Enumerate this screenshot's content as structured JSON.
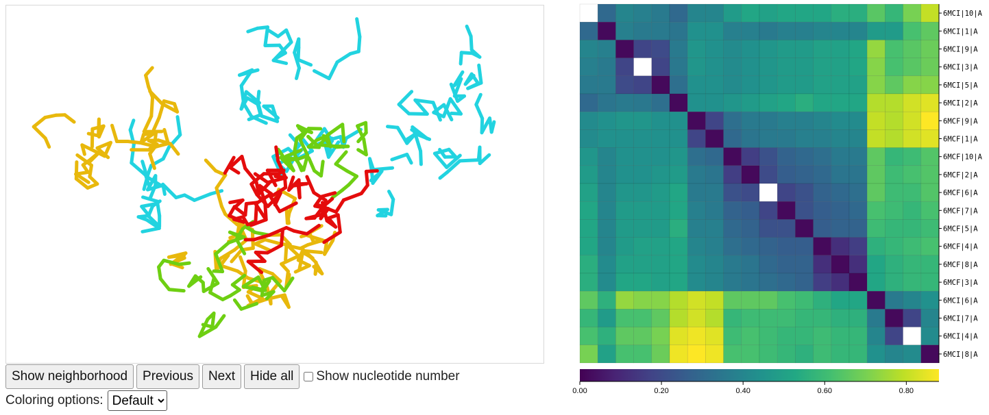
{
  "viewer": {
    "clusters": [
      {
        "name": "cyan-cluster",
        "color": "#22d3e0"
      },
      {
        "name": "gold-cluster",
        "color": "#e8b80c"
      },
      {
        "name": "green-cluster",
        "color": "#6ecf12"
      },
      {
        "name": "red-cluster",
        "color": "#e40c0c"
      }
    ]
  },
  "controls": {
    "show_neighborhood_label": "Show neighborhood",
    "previous_label": "Previous",
    "next_label": "Next",
    "hide_all_label": "Hide all",
    "show_nucleotide_label": "Show nucleotide number",
    "show_nucleotide_checked": false,
    "coloring_label": "Coloring options:",
    "coloring_selected": "Default"
  },
  "chart_data": {
    "type": "heatmap",
    "labels": [
      "6MCI|10|A",
      "6MCI|1|A",
      "6MCI|9|A",
      "6MCI|3|A",
      "6MCI|5|A",
      "6MCI|2|A",
      "6MCF|9|A",
      "6MCF|1|A",
      "6MCF|10|A",
      "6MCF|2|A",
      "6MCF|6|A",
      "6MCF|7|A",
      "6MCF|5|A",
      "6MCF|4|A",
      "6MCF|8|A",
      "6MCF|3|A",
      "6MCI|6|A",
      "6MCI|7|A",
      "6MCI|4|A",
      "6MCI|8|A"
    ],
    "colorbar": {
      "ticks": [
        "0.00",
        "0.20",
        "0.40",
        "0.60",
        "0.80"
      ],
      "tick_values": [
        0,
        0.2,
        0.4,
        0.6,
        0.8
      ],
      "min": 0,
      "max": 0.88
    },
    "colormap": "viridis",
    "values": [
      [
        null,
        0.3,
        0.4,
        0.38,
        0.36,
        0.3,
        0.4,
        0.4,
        0.48,
        0.52,
        0.5,
        0.52,
        0.52,
        0.52,
        0.55,
        0.55,
        0.65,
        0.58,
        0.7,
        0.8
      ],
      [
        0.3,
        0.02,
        0.38,
        0.36,
        0.36,
        0.34,
        0.44,
        0.44,
        0.38,
        0.38,
        0.36,
        0.38,
        0.38,
        0.4,
        0.4,
        0.4,
        0.48,
        0.48,
        0.62,
        0.66
      ],
      [
        0.4,
        0.38,
        0.02,
        0.18,
        0.2,
        0.36,
        0.46,
        0.44,
        0.42,
        0.44,
        0.46,
        0.48,
        0.48,
        0.5,
        0.5,
        0.52,
        0.74,
        0.62,
        0.65,
        0.68
      ],
      [
        0.38,
        0.36,
        0.18,
        null,
        0.18,
        0.35,
        0.46,
        0.44,
        0.42,
        0.44,
        0.46,
        0.48,
        0.48,
        0.5,
        0.5,
        0.52,
        0.72,
        0.62,
        0.65,
        0.68
      ],
      [
        0.36,
        0.36,
        0.2,
        0.18,
        0.02,
        0.32,
        0.44,
        0.44,
        0.42,
        0.44,
        0.46,
        0.48,
        0.48,
        0.5,
        0.5,
        0.5,
        0.72,
        0.66,
        0.72,
        0.72
      ],
      [
        0.3,
        0.34,
        0.36,
        0.35,
        0.32,
        0.02,
        0.44,
        0.44,
        0.46,
        0.48,
        0.5,
        0.52,
        0.55,
        0.52,
        0.52,
        0.52,
        0.78,
        0.78,
        0.82,
        0.84
      ],
      [
        0.42,
        0.44,
        0.46,
        0.46,
        0.44,
        0.44,
        0.02,
        0.18,
        0.32,
        0.36,
        0.36,
        0.38,
        0.38,
        0.4,
        0.42,
        0.42,
        0.8,
        0.78,
        0.82,
        0.88
      ],
      [
        0.42,
        0.44,
        0.44,
        0.44,
        0.44,
        0.44,
        0.18,
        0.02,
        0.3,
        0.34,
        0.36,
        0.36,
        0.38,
        0.38,
        0.4,
        0.4,
        0.8,
        0.78,
        0.82,
        0.84
      ],
      [
        0.46,
        0.4,
        0.44,
        0.44,
        0.44,
        0.46,
        0.32,
        0.3,
        0.02,
        0.16,
        0.22,
        0.28,
        0.3,
        0.32,
        0.36,
        0.36,
        0.66,
        0.58,
        0.6,
        0.64
      ],
      [
        0.48,
        0.4,
        0.44,
        0.44,
        0.46,
        0.48,
        0.36,
        0.34,
        0.16,
        0.02,
        0.2,
        0.26,
        0.28,
        0.3,
        0.34,
        0.34,
        0.66,
        0.6,
        0.62,
        0.64
      ],
      [
        0.5,
        0.4,
        0.46,
        0.46,
        0.48,
        0.52,
        0.36,
        0.36,
        0.22,
        0.2,
        null,
        0.18,
        0.22,
        0.28,
        0.3,
        0.32,
        0.66,
        0.6,
        0.6,
        0.64
      ],
      [
        0.52,
        0.4,
        0.48,
        0.48,
        0.48,
        0.52,
        0.38,
        0.36,
        0.28,
        0.26,
        0.18,
        0.02,
        0.22,
        0.26,
        0.28,
        0.3,
        0.62,
        0.6,
        0.58,
        0.62
      ],
      [
        0.52,
        0.4,
        0.48,
        0.48,
        0.48,
        0.55,
        0.38,
        0.38,
        0.3,
        0.28,
        0.22,
        0.22,
        0.02,
        0.26,
        0.28,
        0.28,
        0.6,
        0.58,
        0.58,
        0.6
      ],
      [
        0.52,
        0.4,
        0.48,
        0.5,
        0.5,
        0.52,
        0.4,
        0.38,
        0.32,
        0.3,
        0.28,
        0.26,
        0.26,
        0.02,
        0.12,
        0.16,
        0.56,
        0.58,
        0.6,
        0.62
      ],
      [
        0.55,
        0.42,
        0.5,
        0.5,
        0.5,
        0.52,
        0.42,
        0.4,
        0.36,
        0.34,
        0.3,
        0.28,
        0.28,
        0.12,
        0.02,
        0.12,
        0.52,
        0.56,
        0.58,
        0.58
      ],
      [
        0.55,
        0.42,
        0.52,
        0.52,
        0.5,
        0.52,
        0.42,
        0.4,
        0.36,
        0.34,
        0.32,
        0.3,
        0.28,
        0.16,
        0.12,
        0.02,
        0.52,
        0.56,
        0.58,
        0.58
      ],
      [
        0.66,
        0.56,
        0.74,
        0.72,
        0.72,
        0.78,
        0.82,
        0.8,
        0.66,
        0.66,
        0.66,
        0.62,
        0.6,
        0.56,
        0.52,
        0.52,
        0.02,
        0.36,
        0.4,
        0.44
      ],
      [
        0.58,
        0.48,
        0.62,
        0.62,
        0.66,
        0.78,
        0.82,
        0.78,
        0.58,
        0.6,
        0.6,
        0.6,
        0.58,
        0.58,
        0.56,
        0.56,
        0.36,
        0.02,
        0.18,
        0.4
      ],
      [
        0.62,
        0.56,
        0.66,
        0.66,
        0.7,
        0.84,
        0.86,
        0.84,
        0.6,
        0.62,
        0.6,
        0.58,
        0.58,
        0.6,
        0.58,
        0.58,
        0.4,
        0.18,
        null,
        0.42
      ],
      [
        0.7,
        0.5,
        0.62,
        0.62,
        0.68,
        0.86,
        0.88,
        0.86,
        0.62,
        0.62,
        0.6,
        0.58,
        0.56,
        0.6,
        0.58,
        0.58,
        0.44,
        0.4,
        0.42,
        0.02
      ]
    ]
  }
}
